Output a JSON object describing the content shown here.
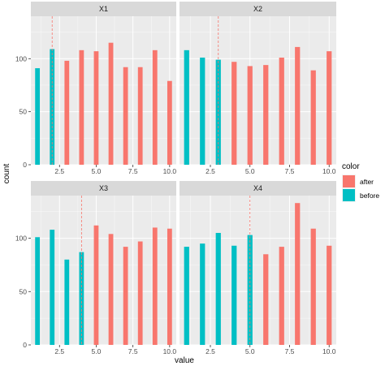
{
  "chart_data": {
    "type": "bar",
    "facets": [
      {
        "label": "X1",
        "x": [
          1,
          2,
          3,
          4,
          5,
          6,
          7,
          8,
          9,
          10
        ],
        "values": [
          91,
          109,
          98,
          108,
          107,
          115,
          92,
          92,
          108,
          79
        ],
        "color_group": [
          "before",
          "before",
          "after",
          "after",
          "after",
          "after",
          "after",
          "after",
          "after",
          "after"
        ],
        "cutoff": 2
      },
      {
        "label": "X2",
        "x": [
          1,
          2,
          3,
          4,
          5,
          6,
          7,
          8,
          9,
          10
        ],
        "values": [
          108,
          101,
          99,
          97,
          93,
          94,
          101,
          111,
          89,
          107
        ],
        "color_group": [
          "before",
          "before",
          "before",
          "after",
          "after",
          "after",
          "after",
          "after",
          "after",
          "after"
        ],
        "cutoff": 3
      },
      {
        "label": "X3",
        "x": [
          1,
          2,
          3,
          4,
          5,
          6,
          7,
          8,
          9,
          10
        ],
        "values": [
          101,
          108,
          80,
          87,
          112,
          104,
          92,
          97,
          110,
          109
        ],
        "color_group": [
          "before",
          "before",
          "before",
          "before",
          "after",
          "after",
          "after",
          "after",
          "after",
          "after"
        ],
        "cutoff": 4
      },
      {
        "label": "X4",
        "x": [
          1,
          2,
          3,
          4,
          5,
          6,
          7,
          8,
          9,
          10
        ],
        "values": [
          92,
          95,
          105,
          93,
          103,
          85,
          92,
          133,
          109,
          93
        ],
        "color_group": [
          "before",
          "before",
          "before",
          "before",
          "before",
          "after",
          "after",
          "after",
          "after",
          "after"
        ],
        "cutoff": 5
      }
    ],
    "xlabel": "value",
    "ylabel": "count",
    "x_ticks": [
      "2.5",
      "5.0",
      "7.5",
      "10.0"
    ],
    "x_tick_values": [
      2.5,
      5.0,
      7.5,
      10.0
    ],
    "y_ticks": [
      "0",
      "50",
      "100"
    ],
    "y_tick_values": [
      0,
      50,
      100
    ],
    "xlim": [
      0.55,
      10.45
    ],
    "ylim": [
      0,
      140
    ],
    "grid": true,
    "legend": {
      "title": "color",
      "position": "right",
      "entries": [
        {
          "label": "after",
          "color": "#F8766D"
        },
        {
          "label": "before",
          "color": "#00BFC4"
        }
      ]
    }
  },
  "colors": {
    "panel_background": "#EBEBEB",
    "grid_major": "#FFFFFF",
    "strip_background": "#D9D9D9",
    "cutoff_line": "#F8766D"
  }
}
